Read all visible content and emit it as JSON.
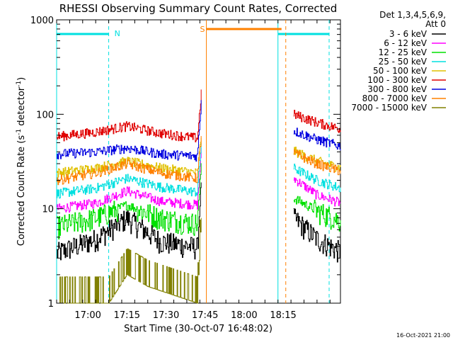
{
  "chart_data": {
    "type": "line",
    "title": "RHESSI Observing Summary Count Rates, Corrected",
    "xlabel": "Start Time (30-Oct-07 16:48:02)",
    "ylabel_main": "Corrected Count Rate (s",
    "ylabel_sup1": "-1",
    "ylabel_mid": " detector",
    "ylabel_sup2": "-1",
    "ylabel_end": ")",
    "yscale": "log",
    "ylim": [
      1,
      1000
    ],
    "xlim_minutes": [
      0,
      109
    ],
    "ytick_labels": [
      "1",
      "10",
      "100",
      "1000"
    ],
    "ytick_values": [
      1,
      10,
      100,
      1000
    ],
    "xtick_labels": [
      "17:00",
      "17:15",
      "17:30",
      "17:45",
      "18:00",
      "18:15"
    ],
    "xtick_minutes": [
      12,
      27,
      42,
      57,
      72,
      87
    ],
    "footer_timestamp": "16-Oct-2021 21:00",
    "legend_header_1": "Det 1,3,4,5,6,9,",
    "legend_header_2": "Att 0",
    "legend": [
      {
        "label": "3 - 6 keV",
        "color": "#000000"
      },
      {
        "label": "6 - 12 keV",
        "color": "#ff00ff"
      },
      {
        "label": "12 - 25 keV",
        "color": "#00e000"
      },
      {
        "label": "25 - 50 keV",
        "color": "#00e0e0"
      },
      {
        "label": "50 - 100 keV",
        "color": "#e0c000"
      },
      {
        "label": "100 - 300 keV",
        "color": "#e00000"
      },
      {
        "label": "300 - 800 keV",
        "color": "#0000e0"
      },
      {
        "label": "800 - 7000 keV",
        "color": "#ff8000"
      },
      {
        "label": "7000 - 15000 keV",
        "color": "#808000"
      }
    ],
    "night_label": "N",
    "saa_label": "S",
    "night_color": "#00e0e0",
    "saa_color": "#ff8000",
    "night_intervals_minutes": [
      [
        0,
        20
      ],
      [
        85,
        109
      ]
    ],
    "saa_interval_minutes": [
      57.5,
      88
    ],
    "data_gap_minutes": [
      56.5,
      91
    ],
    "series": [
      {
        "name": "3 - 6 keV",
        "color": "#000000",
        "seg1": [
          [
            0,
            3.4
          ],
          [
            15,
            4.8
          ],
          [
            27,
            8
          ],
          [
            40,
            4.5
          ],
          [
            54,
            3.9
          ],
          [
            55.5,
            20
          ]
        ],
        "seg2": [
          [
            91,
            8
          ],
          [
            100,
            4.8
          ],
          [
            109,
            3.5
          ]
        ]
      },
      {
        "name": "6 - 12 keV",
        "color": "#ff00ff",
        "seg1": [
          [
            0,
            10
          ],
          [
            15,
            11.5
          ],
          [
            27,
            15.5
          ],
          [
            40,
            12
          ],
          [
            54,
            11
          ],
          [
            55.5,
            40
          ]
        ],
        "seg2": [
          [
            91,
            21
          ],
          [
            100,
            14
          ],
          [
            109,
            11.5
          ]
        ]
      },
      {
        "name": "12 - 25 keV",
        "color": "#00e000",
        "seg1": [
          [
            0,
            6.5
          ],
          [
            15,
            8
          ],
          [
            27,
            11
          ],
          [
            40,
            8
          ],
          [
            54,
            7
          ],
          [
            55.5,
            30
          ]
        ],
        "seg2": [
          [
            91,
            13
          ],
          [
            100,
            9.5
          ],
          [
            109,
            7.5
          ]
        ]
      },
      {
        "name": "25 - 50 keV",
        "color": "#00e0e0",
        "seg1": [
          [
            0,
            14.5
          ],
          [
            15,
            16.5
          ],
          [
            27,
            21
          ],
          [
            40,
            17
          ],
          [
            54,
            15
          ],
          [
            55.5,
            50
          ]
        ],
        "seg2": [
          [
            91,
            27
          ],
          [
            100,
            20
          ],
          [
            109,
            16.5
          ]
        ]
      },
      {
        "name": "50 - 100 keV",
        "color": "#e0c000",
        "seg1": [
          [
            0,
            24
          ],
          [
            15,
            27
          ],
          [
            27,
            32
          ],
          [
            40,
            27
          ],
          [
            54,
            24
          ],
          [
            55.5,
            60
          ]
        ],
        "seg2": [
          [
            91,
            41
          ],
          [
            100,
            32
          ],
          [
            109,
            27
          ]
        ]
      },
      {
        "name": "100 - 300 keV",
        "color": "#e00000",
        "seg1": [
          [
            0,
            58
          ],
          [
            15,
            65
          ],
          [
            27,
            75
          ],
          [
            40,
            63
          ],
          [
            54,
            56
          ],
          [
            55.5,
            170
          ]
        ],
        "seg2": [
          [
            91,
            100
          ],
          [
            100,
            82
          ],
          [
            109,
            70
          ]
        ]
      },
      {
        "name": "300 - 800 keV",
        "color": "#0000e0",
        "seg1": [
          [
            0,
            38
          ],
          [
            15,
            40
          ],
          [
            27,
            44
          ],
          [
            40,
            38
          ],
          [
            54,
            36
          ],
          [
            55.5,
            140
          ]
        ],
        "seg2": [
          [
            91,
            67
          ],
          [
            100,
            54
          ],
          [
            109,
            46
          ]
        ]
      },
      {
        "name": "800 - 7000 keV",
        "color": "#ff8000",
        "seg1": [
          [
            0,
            20
          ],
          [
            15,
            24
          ],
          [
            27,
            30
          ],
          [
            40,
            24
          ],
          [
            54,
            21
          ],
          [
            55.5,
            60
          ]
        ],
        "seg2": [
          [
            91,
            39
          ],
          [
            100,
            30
          ],
          [
            109,
            25
          ]
        ]
      },
      {
        "name": "7000 - 15000 keV",
        "color": "#808000",
        "seg1": [
          [
            0,
            1
          ],
          [
            20,
            1
          ],
          [
            27,
            2
          ],
          [
            35,
            1.5
          ],
          [
            54,
            1
          ],
          [
            55.5,
            8
          ]
        ],
        "seg2": []
      }
    ]
  }
}
